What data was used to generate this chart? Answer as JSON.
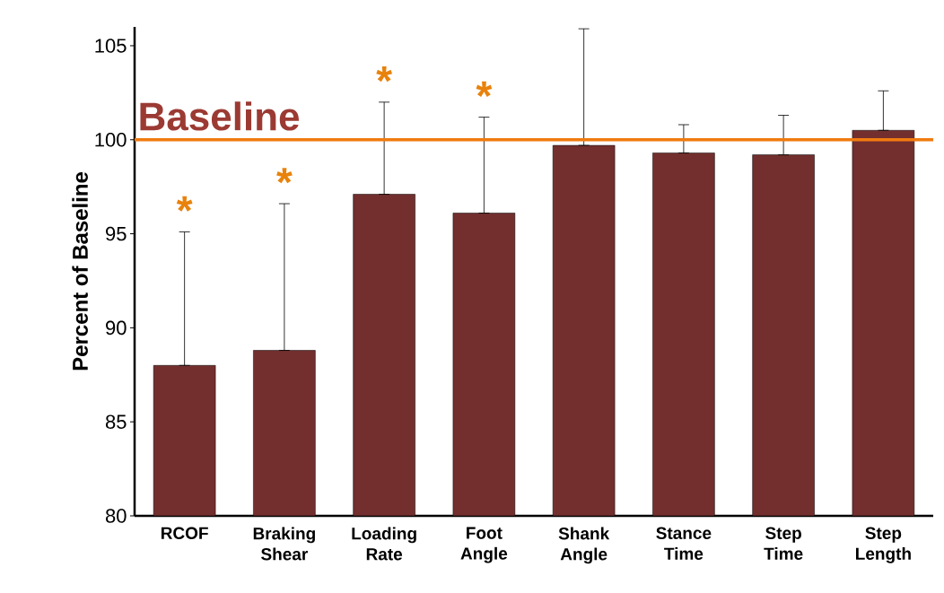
{
  "chart_data": {
    "type": "bar",
    "ylabel": "Percent of Baseline",
    "categories": [
      "RCOF",
      "Braking Shear",
      "Loading Rate",
      "Foot Angle",
      "Shank Angle",
      "Stance Time",
      "Step Time",
      "Step Length"
    ],
    "values": [
      88.0,
      88.8,
      97.1,
      96.1,
      99.7,
      99.3,
      99.2,
      100.5
    ],
    "errors": [
      [
        88.0,
        95.1
      ],
      [
        88.8,
        96.6
      ],
      [
        97.1,
        102.0
      ],
      [
        96.1,
        101.2
      ],
      [
        99.7,
        105.9
      ],
      [
        99.3,
        100.8
      ],
      [
        99.2,
        101.3
      ],
      [
        100.5,
        102.6
      ]
    ],
    "color": "#722f2e",
    "ylim": [
      80,
      106
    ],
    "yticks": [
      80,
      85,
      90,
      95,
      100,
      105
    ],
    "ref_lines": [
      {
        "axis": "y",
        "value": 100,
        "label": "Baseline",
        "color": "#f07b10"
      }
    ],
    "annotations": [
      "*",
      "*",
      "*",
      "*"
    ]
  }
}
